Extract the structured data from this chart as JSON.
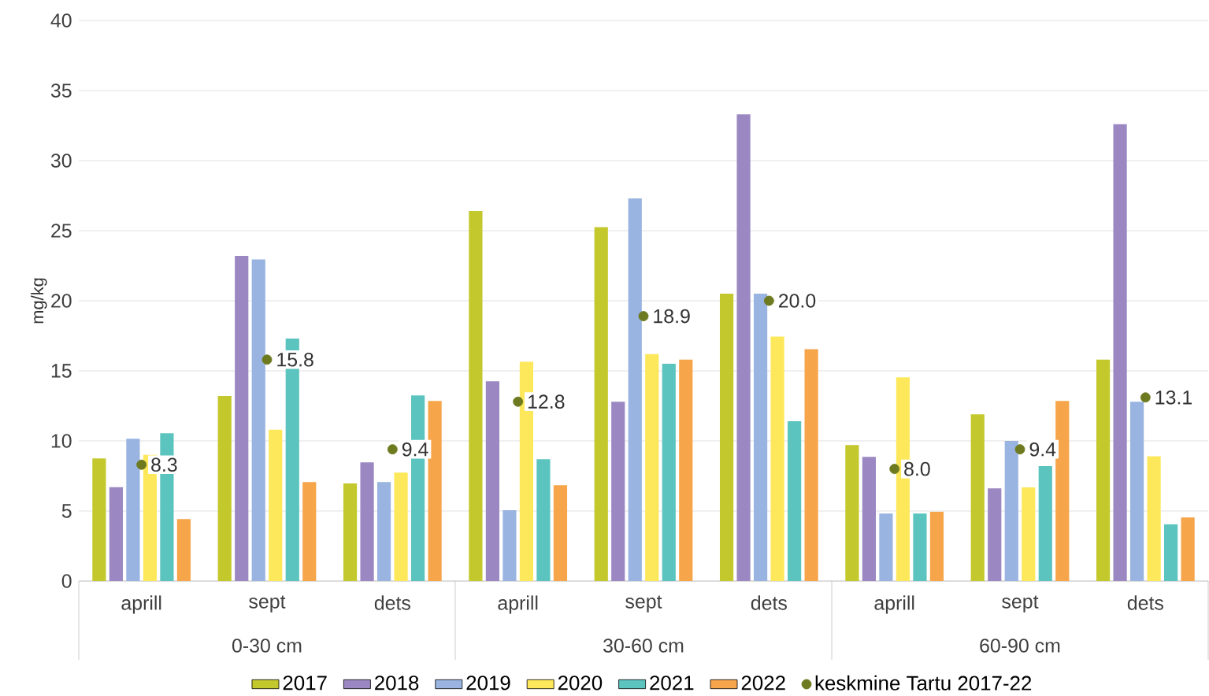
{
  "chart_data": {
    "type": "bar",
    "ylabel": "mg/kg",
    "categories": [
      "aprill",
      "sept",
      "dets",
      "aprill",
      "sept",
      "dets",
      "aprill",
      "sept",
      "dets"
    ],
    "annotations": [
      "0-30 cm",
      "30-60 cm",
      "60-90 cm"
    ],
    "series": [
      {
        "name": "2017",
        "color": "#c3c82c",
        "values": [
          8.75,
          13.2,
          6.96,
          26.4,
          25.25,
          20.5,
          9.7,
          11.9,
          15.8
        ]
      },
      {
        "name": "2018",
        "color": "#9b88c2",
        "values": [
          6.7,
          23.2,
          8.47,
          14.25,
          12.8,
          33.3,
          8.86,
          6.62,
          32.6
        ]
      },
      {
        "name": "2019",
        "color": "#99b4e0",
        "values": [
          10.15,
          22.95,
          7.07,
          5.05,
          27.3,
          20.5,
          4.82,
          10.0,
          12.8
        ]
      },
      {
        "name": "2020",
        "color": "#fde85c",
        "values": [
          9.0,
          10.8,
          7.74,
          15.65,
          16.2,
          17.45,
          14.53,
          6.68,
          8.9
        ]
      },
      {
        "name": "2021",
        "color": "#5cc4bf",
        "values": [
          10.55,
          17.3,
          13.24,
          8.7,
          15.5,
          11.4,
          4.82,
          8.2,
          4.04
        ]
      },
      {
        "name": "2022",
        "color": "#f7a54a",
        "values": [
          4.43,
          7.07,
          12.85,
          6.84,
          15.8,
          16.55,
          4.94,
          12.85,
          4.54
        ]
      },
      {
        "name": "keskmine Tartu 2017-22",
        "type": "scatter",
        "color": "#6e7a1f",
        "values": [
          8.3,
          15.8,
          9.4,
          12.8,
          18.9,
          20.0,
          8.0,
          9.4,
          13.1
        ],
        "value_labels": [
          "8.3",
          "15.8",
          "9.4",
          "12.8",
          "18.9",
          "20.0",
          "8.0",
          "9.4",
          "13.1"
        ]
      }
    ],
    "ylim": [
      0,
      40
    ],
    "yticks": [
      0,
      5,
      10,
      15,
      20,
      25,
      30,
      35,
      40
    ],
    "grid": "y",
    "legend": "bottom"
  }
}
